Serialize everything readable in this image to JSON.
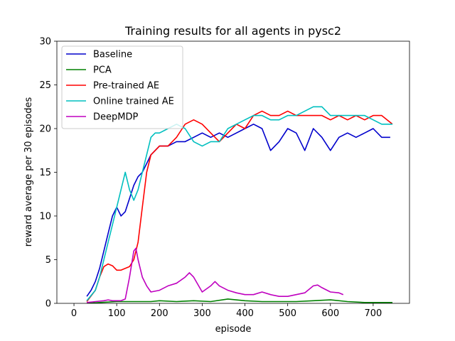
{
  "chart_data": {
    "type": "line",
    "title": "Training results for all agents in pysc2",
    "xlabel": "episode",
    "ylabel": "reward average per 30 episodes",
    "xlim": [
      -40,
      785
    ],
    "ylim": [
      0,
      30
    ],
    "xticks": [
      0,
      100,
      200,
      300,
      400,
      500,
      600,
      700
    ],
    "yticks": [
      0,
      5,
      10,
      15,
      20,
      25,
      30
    ],
    "grid": false,
    "legend_position": "upper-left",
    "series": [
      {
        "name": "Baseline",
        "color": "#0000cc",
        "x": [
          30,
          40,
          50,
          60,
          70,
          80,
          90,
          100,
          110,
          120,
          130,
          140,
          150,
          160,
          170,
          180,
          190,
          200,
          220,
          240,
          260,
          280,
          300,
          320,
          340,
          360,
          380,
          400,
          420,
          440,
          460,
          480,
          500,
          520,
          540,
          560,
          580,
          600,
          620,
          640,
          660,
          680,
          700,
          720,
          740
        ],
        "y": [
          0.8,
          1.5,
          2.5,
          4,
          6,
          8,
          10,
          11,
          10,
          10.5,
          12,
          13.5,
          14.5,
          15,
          16,
          17,
          17.5,
          18,
          18,
          18.5,
          18.5,
          19,
          19.5,
          19,
          19.5,
          19,
          19.5,
          20,
          20.5,
          20,
          17.5,
          18.5,
          20,
          19.5,
          17.5,
          20,
          19,
          17.5,
          19,
          19.5,
          19,
          19.5,
          20,
          19,
          19
        ]
      },
      {
        "name": "PCA",
        "color": "#008000",
        "x": [
          30,
          60,
          100,
          140,
          180,
          200,
          240,
          280,
          320,
          360,
          400,
          440,
          480,
          520,
          560,
          600,
          640,
          680,
          720,
          745
        ],
        "y": [
          0.0,
          0.1,
          0.2,
          0.2,
          0.2,
          0.3,
          0.2,
          0.3,
          0.2,
          0.5,
          0.3,
          0.2,
          0.2,
          0.2,
          0.3,
          0.4,
          0.2,
          0.1,
          0.1,
          0.1
        ]
      },
      {
        "name": "Pre-trained AE",
        "color": "#ff0000",
        "x": [
          30,
          50,
          60,
          70,
          80,
          90,
          100,
          110,
          120,
          130,
          140,
          150,
          160,
          170,
          180,
          190,
          200,
          220,
          240,
          260,
          280,
          300,
          320,
          340,
          360,
          380,
          400,
          420,
          440,
          460,
          480,
          500,
          520,
          540,
          560,
          580,
          600,
          620,
          640,
          660,
          680,
          700,
          720,
          745
        ],
        "y": [
          0.2,
          1.5,
          3,
          4.2,
          4.5,
          4.3,
          3.8,
          3.8,
          4,
          4.2,
          5,
          7,
          11,
          15,
          17,
          17.5,
          18,
          18,
          19,
          20.5,
          21,
          20.5,
          19.5,
          18.5,
          19.5,
          20.5,
          20,
          21.5,
          22,
          21.5,
          21.5,
          22,
          21.5,
          21.5,
          21.5,
          21.5,
          21,
          21.5,
          21,
          21.5,
          21,
          21.5,
          21.5,
          20.5
        ]
      },
      {
        "name": "Online trained AE",
        "color": "#00bfbf",
        "x": [
          30,
          50,
          60,
          70,
          80,
          90,
          100,
          110,
          120,
          130,
          140,
          150,
          160,
          170,
          180,
          190,
          200,
          220,
          240,
          260,
          280,
          300,
          320,
          340,
          360,
          380,
          400,
          420,
          440,
          460,
          480,
          500,
          520,
          540,
          560,
          580,
          600,
          620,
          640,
          660,
          680,
          700,
          720,
          745
        ],
        "y": [
          0.3,
          1.5,
          3,
          5,
          7,
          9,
          11,
          13,
          15,
          13,
          11.8,
          13,
          15,
          17,
          19,
          19.5,
          19.5,
          20,
          20.5,
          20,
          18.5,
          18,
          18.5,
          18.5,
          20,
          20.5,
          21,
          21.5,
          21.5,
          21,
          21,
          21.5,
          21.5,
          22,
          22.5,
          22.5,
          21.5,
          21.5,
          21.5,
          21.5,
          21.5,
          21,
          20.5,
          20.5
        ]
      },
      {
        "name": "DeepMDP",
        "color": "#bf00bf",
        "x": [
          30,
          50,
          70,
          80,
          90,
          100,
          110,
          120,
          130,
          140,
          145,
          150,
          160,
          170,
          180,
          200,
          220,
          240,
          260,
          270,
          280,
          300,
          320,
          330,
          340,
          360,
          380,
          400,
          420,
          440,
          460,
          480,
          500,
          520,
          540,
          560,
          570,
          580,
          600,
          620,
          630
        ],
        "y": [
          0.1,
          0.2,
          0.3,
          0.4,
          0.3,
          0.3,
          0.3,
          0.5,
          3,
          6,
          6.3,
          5,
          3,
          2,
          1.3,
          1.5,
          2,
          2.3,
          3,
          3.5,
          3,
          1.3,
          2,
          2.5,
          2,
          1.5,
          1.2,
          1,
          1,
          1.3,
          1,
          0.8,
          0.8,
          1,
          1.2,
          2,
          2.1,
          1.8,
          1.3,
          1.2,
          1
        ]
      }
    ]
  }
}
